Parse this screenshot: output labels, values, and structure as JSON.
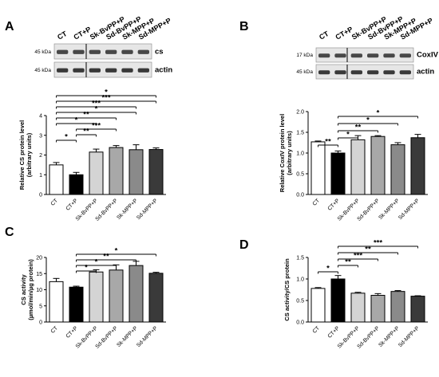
{
  "chart_data": [
    {
      "panel": "A",
      "type": "bar",
      "blot": {
        "headers": [
          "CT",
          "CT+P",
          "Sk-BvPP+P",
          "Sd-BvPP+P",
          "Sk-MPP+P",
          "Sd-MPP+P"
        ],
        "rows": [
          {
            "kda": "45 kDa",
            "protein": "cs"
          },
          {
            "kda": "45 kDa",
            "protein": "actin"
          }
        ]
      },
      "categories": [
        "CT",
        "CT+P",
        "Sk-BvPP+P",
        "Sd-BvPP+P",
        "Sk-MPP+P",
        "Sd-MPP+P"
      ],
      "values": [
        1.5,
        1.0,
        2.15,
        2.38,
        2.27,
        2.28
      ],
      "errors": [
        0.12,
        0.12,
        0.15,
        0.1,
        0.25,
        0.08
      ],
      "colors": [
        "#ffffff",
        "#000000",
        "#d4d4d4",
        "#a8a8a8",
        "#8a8a8a",
        "#3a3a3a"
      ],
      "ylabel": [
        "Relative CS protein level",
        "(arbitrary units)"
      ],
      "ylim": [
        0,
        4
      ],
      "yticks": [
        "0",
        "1",
        "2",
        "3",
        "4"
      ],
      "significance": [
        {
          "from": 0,
          "to": 1,
          "label": "*"
        },
        {
          "from": 1,
          "to": 2,
          "label": "**"
        },
        {
          "from": 1,
          "to": 3,
          "label": "***"
        },
        {
          "from": 0,
          "to": 2,
          "label": "*"
        },
        {
          "from": 0,
          "to": 3,
          "label": "**"
        },
        {
          "from": 0,
          "to": 4,
          "label": "*"
        },
        {
          "from": 0,
          "to": 4,
          "label": "***"
        },
        {
          "from": 0,
          "to": 5,
          "label": "***"
        },
        {
          "from": 0,
          "to": 5,
          "label": "*"
        }
      ]
    },
    {
      "panel": "B",
      "type": "bar",
      "blot": {
        "headers": [
          "CT",
          "CT+P",
          "Sk-BvPP+P",
          "Sd-BvPP+P",
          "Sk-MPP+P",
          "Sd-MPP+P"
        ],
        "rows": [
          {
            "kda": "17 kDa",
            "protein": "CoxIV"
          },
          {
            "kda": "45 kDa",
            "protein": "actin"
          }
        ]
      },
      "categories": [
        "CT",
        "CT+P",
        "Sk-BvPP+P",
        "Sd-BvPP+P",
        "Sk-MPP+P",
        "Sd-MPP+P"
      ],
      "values": [
        1.27,
        1.0,
        1.32,
        1.4,
        1.2,
        1.37
      ],
      "errors": [
        0.02,
        0.05,
        0.1,
        0.02,
        0.05,
        0.08
      ],
      "colors": [
        "#ffffff",
        "#000000",
        "#d4d4d4",
        "#a8a8a8",
        "#8a8a8a",
        "#3a3a3a"
      ],
      "ylabel": [
        "Relative CoxIV protein level",
        "(arbitrary units)"
      ],
      "ylim": [
        0,
        2
      ],
      "yticks": [
        "0.0",
        "0.5",
        "1.0",
        "1.5",
        "2.0"
      ],
      "significance": [
        {
          "from": 0,
          "to": 1,
          "label": "**"
        },
        {
          "from": 1,
          "to": 2,
          "label": "*"
        },
        {
          "from": 1,
          "to": 3,
          "label": "**"
        },
        {
          "from": 1,
          "to": 4,
          "label": "*"
        },
        {
          "from": 1,
          "to": 5,
          "label": "*"
        }
      ]
    },
    {
      "panel": "C",
      "type": "bar",
      "categories": [
        "CT",
        "CT+P",
        "Sk-BvPP+P",
        "Sd-BvPP+P",
        "Sk-MPP+P",
        "Sd-MPP+P"
      ],
      "values": [
        12.5,
        10.8,
        15.5,
        16.1,
        17.5,
        15.1
      ],
      "errors": [
        1.0,
        0.3,
        0.7,
        1.6,
        1.3,
        0.3
      ],
      "colors": [
        "#ffffff",
        "#000000",
        "#d4d4d4",
        "#a8a8a8",
        "#8a8a8a",
        "#3a3a3a"
      ],
      "ylabel": [
        "CS activity",
        "(µmol/min/µg protein)"
      ],
      "ylim": [
        0,
        20
      ],
      "yticks": [
        "0",
        "5",
        "10",
        "15",
        "20"
      ],
      "significance": [
        {
          "from": 1,
          "to": 2,
          "label": "*"
        },
        {
          "from": 1,
          "to": 3,
          "label": "*"
        },
        {
          "from": 1,
          "to": 4,
          "label": "**"
        },
        {
          "from": 1,
          "to": 5,
          "label": "*"
        }
      ]
    },
    {
      "panel": "D",
      "type": "bar",
      "categories": [
        "CT",
        "CT+P",
        "Sk-BvPP+P",
        "Sd-BvPP+P",
        "Sk-MPP+P",
        "Sd-MPP+P"
      ],
      "values": [
        0.78,
        1.0,
        0.67,
        0.62,
        0.71,
        0.6
      ],
      "errors": [
        0.02,
        0.08,
        0.02,
        0.04,
        0.02,
        0.01
      ],
      "colors": [
        "#ffffff",
        "#000000",
        "#d4d4d4",
        "#a8a8a8",
        "#8a8a8a",
        "#3a3a3a"
      ],
      "ylabel": [
        "CS activity/CS protein"
      ],
      "ylim": [
        0,
        1.5
      ],
      "yticks": [
        "0.0",
        "0.5",
        "1.0",
        "1.5"
      ],
      "significance": [
        {
          "from": 0,
          "to": 1,
          "label": "*"
        },
        {
          "from": 1,
          "to": 2,
          "label": "**"
        },
        {
          "from": 1,
          "to": 3,
          "label": "***"
        },
        {
          "from": 1,
          "to": 4,
          "label": "**"
        },
        {
          "from": 1,
          "to": 5,
          "label": "***"
        }
      ]
    }
  ]
}
